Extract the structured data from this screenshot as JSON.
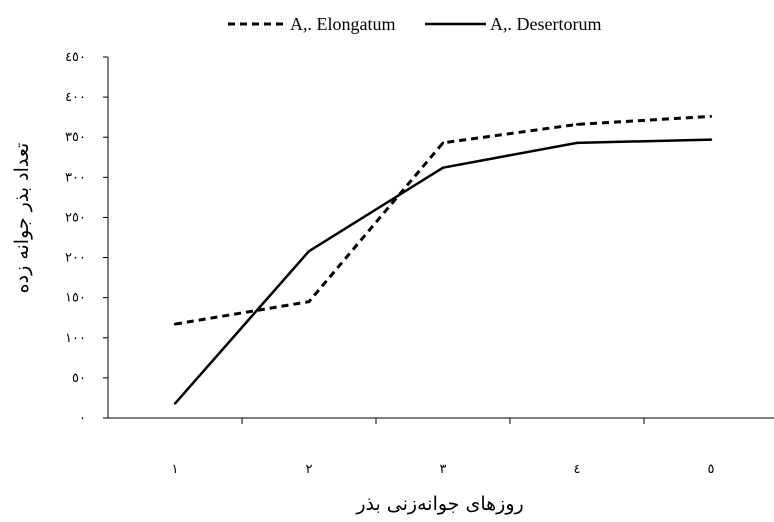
{
  "chart_data": {
    "type": "line",
    "title": "",
    "xlabel": "روزهای جوانه‌زنی بذر",
    "ylabel": "تعداد بذر جوانه زده",
    "categories": [
      "١",
      "٢",
      "٣",
      "٤",
      "٥"
    ],
    "ylim": [
      0,
      450
    ],
    "yticks": [
      0,
      50,
      100,
      150,
      200,
      250,
      300,
      350,
      400,
      450
    ],
    "ytick_labels": [
      "٠",
      "٥٠",
      "١٠٠",
      "١٥٠",
      "٢٠٠",
      "٢٥٠",
      "٣٠٠",
      "٣٥٠",
      "٤٠٠",
      "٤٥٠"
    ],
    "grid": false,
    "legend_position": "top",
    "series": [
      {
        "name": "A,. Elongatum",
        "values": [
          117,
          145,
          343,
          366,
          376
        ],
        "style": "dashed",
        "color": "#000000"
      },
      {
        "name": "A,. Desertorum",
        "values": [
          18,
          208,
          312,
          343,
          347
        ],
        "style": "solid",
        "color": "#000000"
      }
    ]
  }
}
